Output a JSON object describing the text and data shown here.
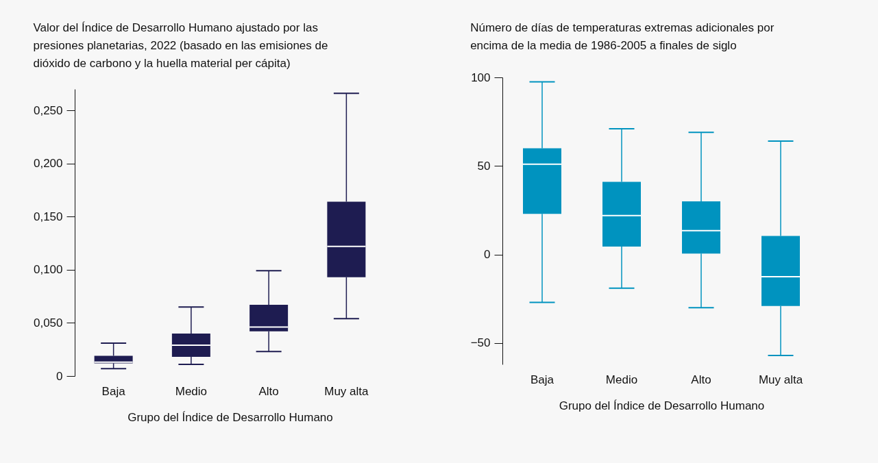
{
  "chart_data": [
    {
      "type": "box",
      "title": "Valor del Índice de Desarrollo Humano ajustado por las presiones planetarias, 2022 (basado en las emisiones de dióxido de carbono y la huella material per cápita)",
      "xlabel": "Grupo del Índice de Desarrollo Humano",
      "categories": [
        "Baja",
        "Medio",
        "Alto",
        "Muy alta"
      ],
      "ylim": [
        0,
        0.27
      ],
      "yticks": [
        0,
        {
          "value": 0.05,
          "label": "0,050"
        },
        {
          "value": 0.1,
          "label": "0,100"
        },
        {
          "value": 0.15,
          "label": "0,150"
        },
        {
          "value": 0.2,
          "label": "0,200"
        },
        {
          "value": 0.25,
          "label": "0,250"
        }
      ],
      "series": [
        {
          "color": "#1e1c51",
          "boxes": [
            {
              "low": 0.007,
              "q1": 0.012,
              "median": 0.013,
              "q3": 0.019,
              "high": 0.031
            },
            {
              "low": 0.011,
              "q1": 0.018,
              "median": 0.029,
              "q3": 0.04,
              "high": 0.065
            },
            {
              "low": 0.023,
              "q1": 0.042,
              "median": 0.046,
              "q3": 0.067,
              "high": 0.099
            },
            {
              "low": 0.054,
              "q1": 0.093,
              "median": 0.122,
              "q3": 0.164,
              "high": 0.266
            }
          ]
        }
      ]
    },
    {
      "type": "box",
      "title": "Número de días de temperaturas extremas adicionales por encima de la media de 1986-2005 a finales de siglo",
      "xlabel": "Grupo del Índice de Desarrollo Humano",
      "categories": [
        "Baja",
        "Medio",
        "Alto",
        "Muy alta"
      ],
      "ylim": [
        -62,
        100
      ],
      "yticks": [
        {
          "value": -50,
          "label": "−50"
        },
        0,
        50,
        100
      ],
      "series": [
        {
          "color": "#0093bf",
          "boxes": [
            {
              "low": -27,
              "q1": 23,
              "median": 51,
              "q3": 60,
              "high": 97.5
            },
            {
              "low": -19,
              "q1": 4.5,
              "median": 22,
              "q3": 41,
              "high": 71
            },
            {
              "low": -30,
              "q1": 0.5,
              "median": 13.5,
              "q3": 30,
              "high": 69
            },
            {
              "low": -57,
              "q1": -29,
              "median": -12.5,
              "q3": 10.5,
              "high": 64
            }
          ]
        }
      ]
    }
  ]
}
